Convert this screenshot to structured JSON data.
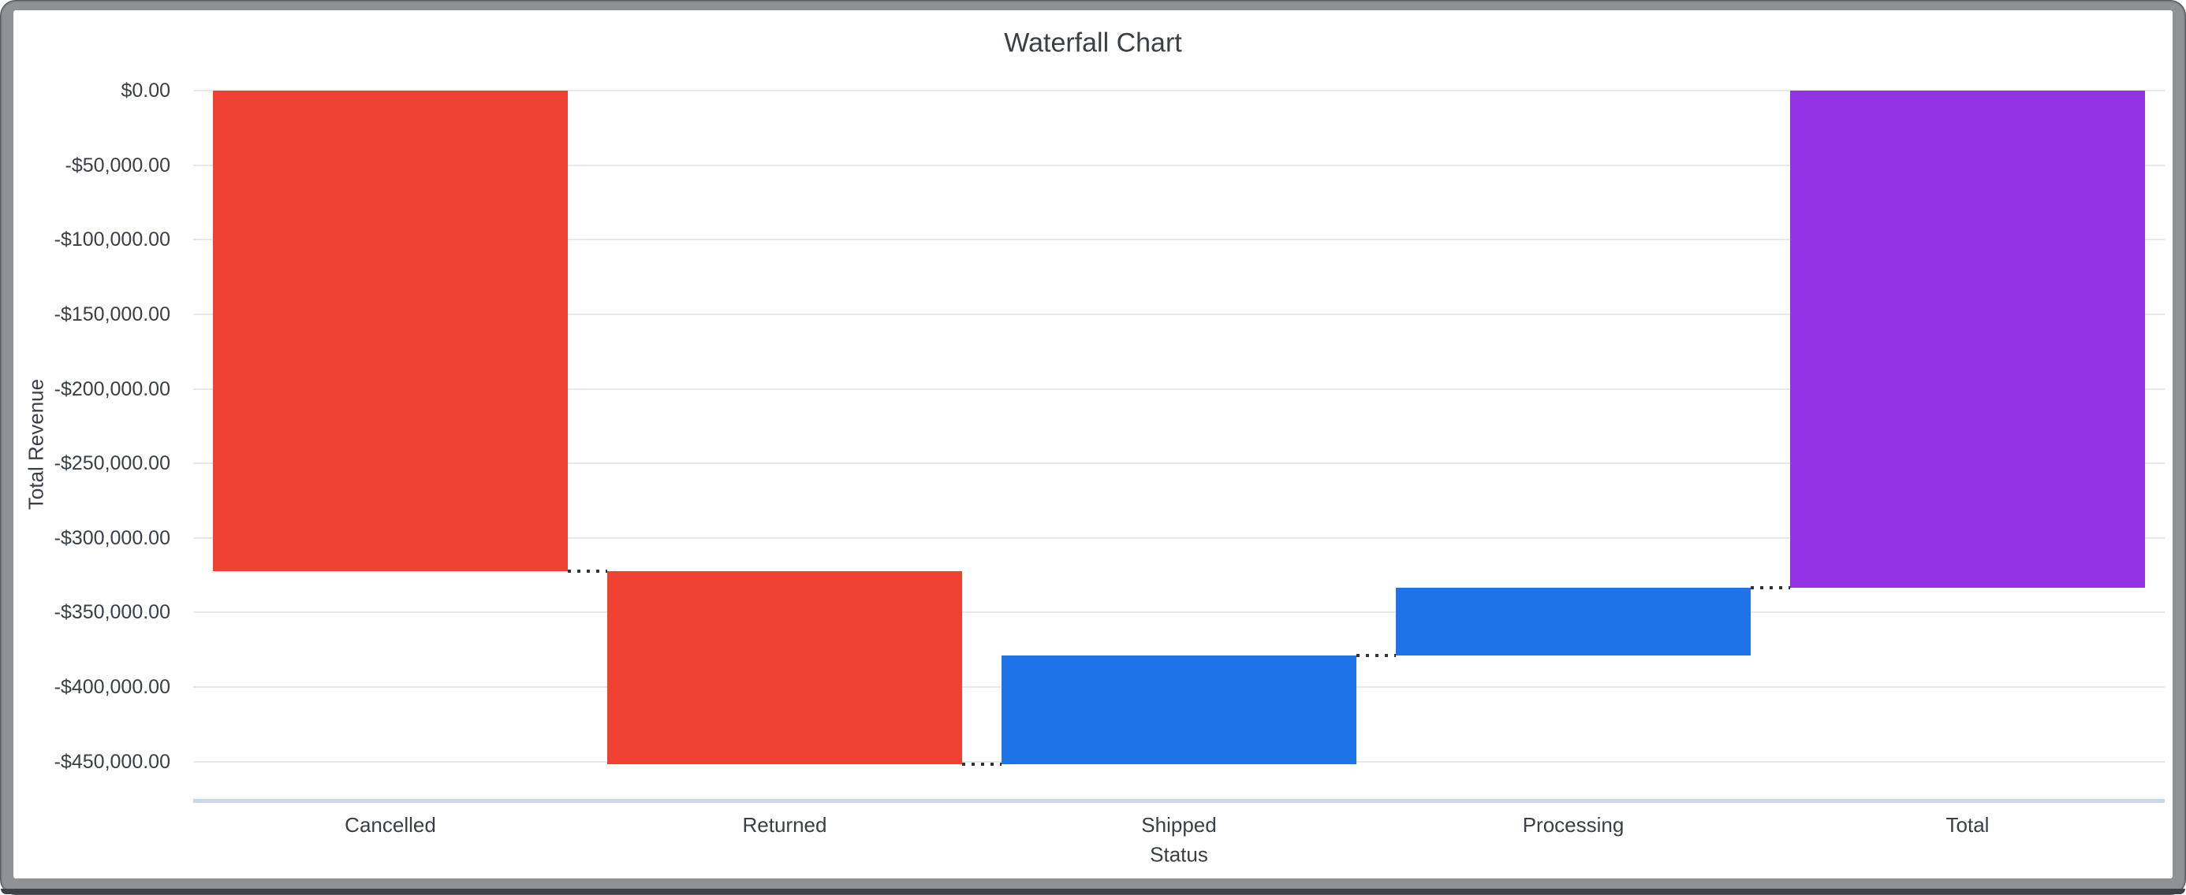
{
  "window": {
    "frame_color": "#8e9295",
    "frame_edge_color": "#3f4246",
    "content_background": "#ffffff"
  },
  "chart_data": {
    "type": "waterfall",
    "title": "Waterfall Chart",
    "xlabel": "Status",
    "ylabel": "Total Revenue",
    "categories": [
      "Cancelled",
      "Returned",
      "Shipped",
      "Processing",
      "Total"
    ],
    "bars": [
      {
        "category": "Cancelled",
        "role": "decrease",
        "delta": -322500,
        "start": 0,
        "end": -322500
      },
      {
        "category": "Returned",
        "role": "decrease",
        "delta": -129000,
        "start": -322500,
        "end": -451500
      },
      {
        "category": "Shipped",
        "role": "increase",
        "delta": 72500,
        "start": -451500,
        "end": -379000
      },
      {
        "category": "Processing",
        "role": "increase",
        "delta": 45500,
        "start": -379000,
        "end": -333500
      },
      {
        "category": "Total",
        "role": "total",
        "delta": -333500,
        "start": 0,
        "end": -333500
      }
    ],
    "y_ticks": [
      {
        "value": 0,
        "label": "$0.00"
      },
      {
        "value": -50000,
        "label": "-$50,000.00"
      },
      {
        "value": -100000,
        "label": "-$100,000.00"
      },
      {
        "value": -150000,
        "label": "-$150,000.00"
      },
      {
        "value": -200000,
        "label": "-$200,000.00"
      },
      {
        "value": -250000,
        "label": "-$250,000.00"
      },
      {
        "value": -300000,
        "label": "-$300,000.00"
      },
      {
        "value": -350000,
        "label": "-$350,000.00"
      },
      {
        "value": -400000,
        "label": "-$400,000.00"
      },
      {
        "value": -450000,
        "label": "-$450,000.00"
      }
    ],
    "ylim": [
      -475000,
      0
    ],
    "grid": true,
    "legend": "none",
    "connector_style": "dotted",
    "colors": {
      "decrease": "#ee4134",
      "increase": "#1e73e6",
      "total": "#9232e2"
    },
    "text_color": "#3a3e45",
    "gridline_color": "#e8e8e8",
    "baseline_color": "#ccd6e8",
    "connector_color": "#333333"
  }
}
